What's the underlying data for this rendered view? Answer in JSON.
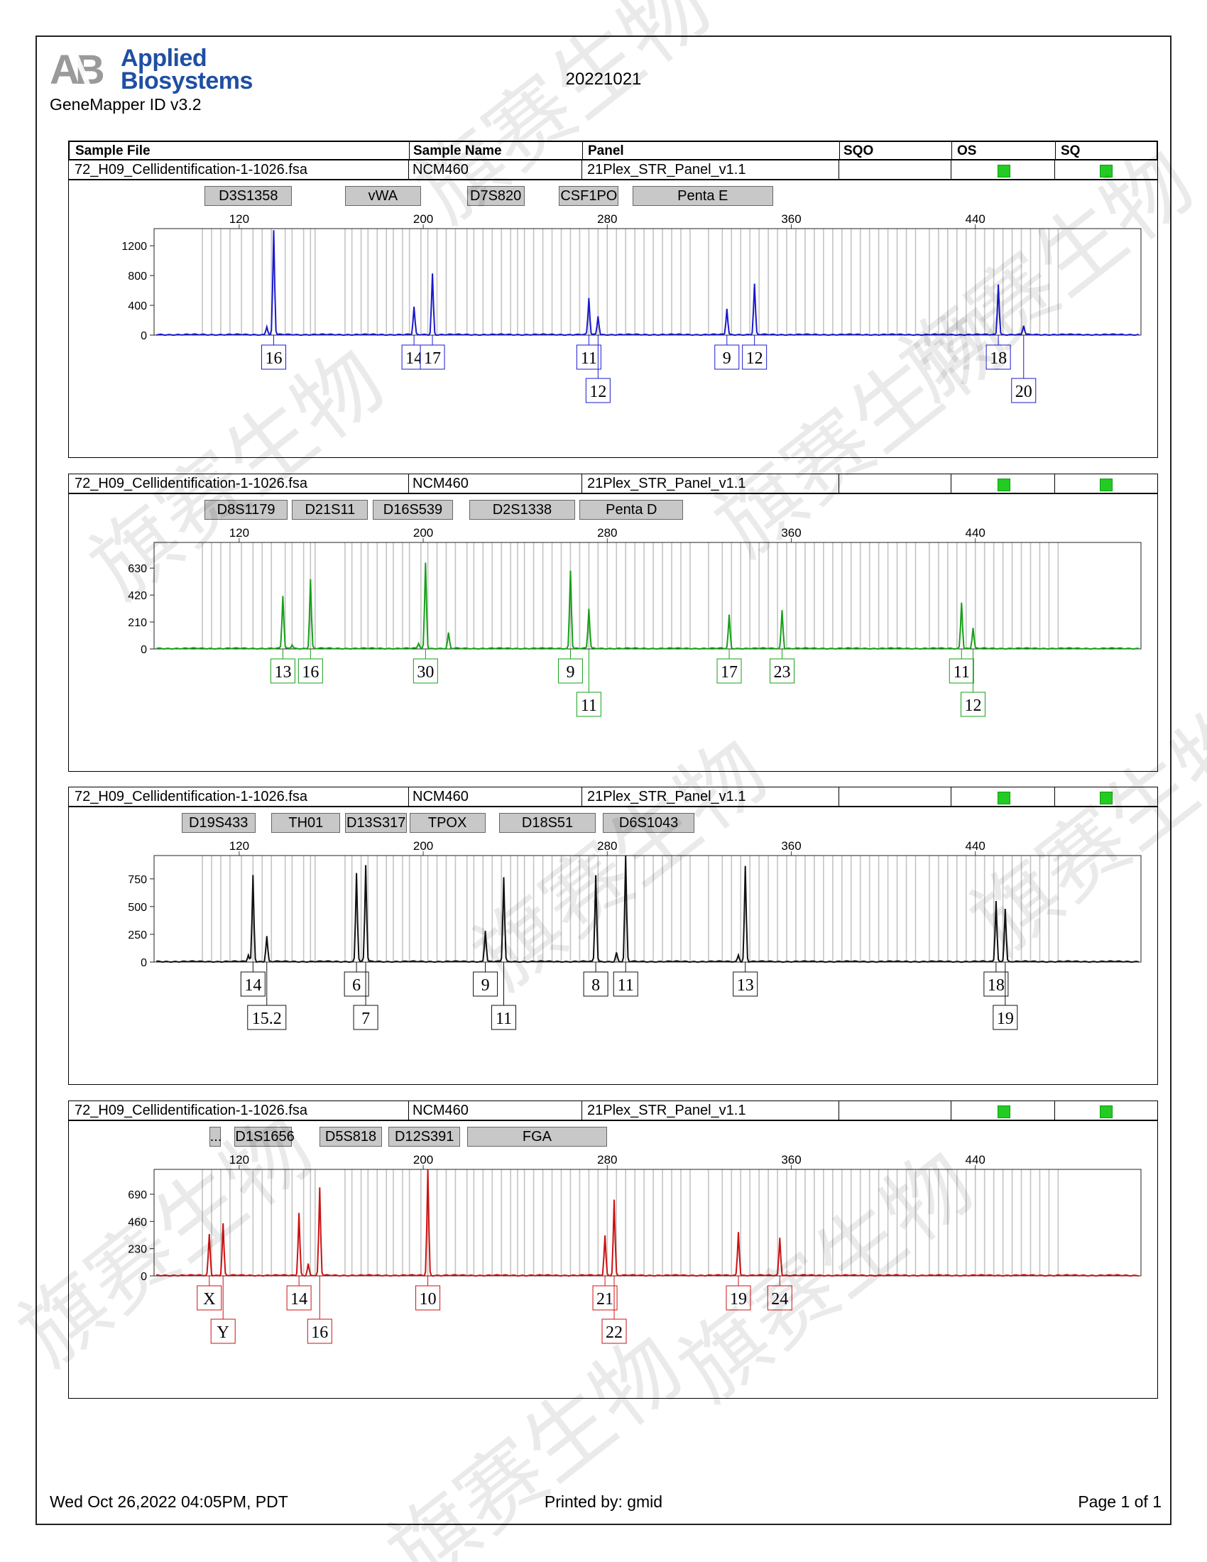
{
  "report": {
    "logo_text": "Applied Biosystems",
    "logo_line1": "Applied",
    "logo_line2": "Biosystems",
    "software": "GeneMapper ID v3.2",
    "date_code": "20221021",
    "footer_datetime": "Wed Oct 26,2022 04:05PM, PDT",
    "footer_printed_by": "Printed by: gmid",
    "footer_page": "Page 1 of 1",
    "watermark": "旗赛生物"
  },
  "columns": [
    "Sample File",
    "Sample Name",
    "Panel",
    "SQO",
    "OS",
    "SQ"
  ],
  "chart_data": [
    {
      "type": "line",
      "sample_file": "72_H09_Cellidentification-1-1026.fsa",
      "sample_name": "NCM460",
      "panel": "21Plex_STR_Panel_v1.1",
      "color": "#1a1acc",
      "markers": [
        "D3S1358",
        "vWA",
        "D7S820",
        "CSF1PO",
        "Penta E"
      ],
      "x_ticks": [
        120,
        200,
        280,
        360,
        440
      ],
      "xlim": [
        83,
        512
      ],
      "y_ticks": [
        0,
        400,
        800,
        1200
      ],
      "ylim": [
        0,
        1430
      ],
      "peaks": [
        {
          "x": 132,
          "y": 110
        },
        {
          "x": 135,
          "y": 1400,
          "label": "16",
          "row": 0
        },
        {
          "x": 196,
          "y": 370,
          "label": "14",
          "row": 0
        },
        {
          "x": 204,
          "y": 820,
          "label": "17",
          "row": 0
        },
        {
          "x": 272,
          "y": 490,
          "label": "11",
          "row": 0
        },
        {
          "x": 276,
          "y": 250,
          "label": "12",
          "row": 1
        },
        {
          "x": 332,
          "y": 350,
          "label": "9",
          "row": 0
        },
        {
          "x": 344,
          "y": 680,
          "label": "12",
          "row": 0
        },
        {
          "x": 450,
          "y": 680,
          "label": "18",
          "row": 0
        },
        {
          "x": 461,
          "y": 120,
          "label": "20",
          "row": 1
        }
      ]
    },
    {
      "type": "line",
      "sample_file": "72_H09_Cellidentification-1-1026.fsa",
      "sample_name": "NCM460",
      "panel": "21Plex_STR_Panel_v1.1",
      "color": "#16a016",
      "markers": [
        "D8S1179",
        "D21S11",
        "D16S539",
        "D2S1338",
        "Penta D"
      ],
      "x_ticks": [
        120,
        200,
        280,
        360,
        440
      ],
      "xlim": [
        83,
        512
      ],
      "y_ticks": [
        0,
        210,
        420,
        630
      ],
      "ylim": [
        0,
        830
      ],
      "peaks": [
        {
          "x": 139,
          "y": 410,
          "label": "13",
          "row": 0
        },
        {
          "x": 143,
          "y": 30
        },
        {
          "x": 151,
          "y": 540,
          "label": "16",
          "row": 0
        },
        {
          "x": 198,
          "y": 40
        },
        {
          "x": 201,
          "y": 670,
          "label": "30",
          "row": 0
        },
        {
          "x": 211,
          "y": 120
        },
        {
          "x": 264,
          "y": 610,
          "label": "9",
          "row": 0
        },
        {
          "x": 272,
          "y": 310,
          "label": "11",
          "row": 1
        },
        {
          "x": 333,
          "y": 260,
          "label": "17",
          "row": 0
        },
        {
          "x": 356,
          "y": 300,
          "label": "23",
          "row": 0
        },
        {
          "x": 434,
          "y": 360,
          "label": "11",
          "row": 0
        },
        {
          "x": 439,
          "y": 160,
          "label": "12",
          "row": 1
        }
      ]
    },
    {
      "type": "line",
      "sample_file": "72_H09_Cellidentification-1-1026.fsa",
      "sample_name": "NCM460",
      "panel": "21Plex_STR_Panel_v1.1",
      "color": "#111111",
      "markers": [
        "D19S433",
        "TH01",
        "D13S317",
        "TPOX",
        "D18S51",
        "D6S1043"
      ],
      "x_ticks": [
        120,
        200,
        280,
        360,
        440
      ],
      "xlim": [
        83,
        512
      ],
      "y_ticks": [
        0,
        250,
        500,
        750
      ],
      "ylim": [
        0,
        960
      ],
      "peaks": [
        {
          "x": 124,
          "y": 60
        },
        {
          "x": 126,
          "y": 780,
          "label": "14",
          "row": 0
        },
        {
          "x": 132,
          "y": 230,
          "label": "15.2",
          "row": 1
        },
        {
          "x": 171,
          "y": 800,
          "label": "6",
          "row": 0
        },
        {
          "x": 175,
          "y": 870,
          "label": "7",
          "row": 1
        },
        {
          "x": 227,
          "y": 280,
          "label": "9",
          "row": 0
        },
        {
          "x": 235,
          "y": 760,
          "label": "11",
          "row": 1
        },
        {
          "x": 275,
          "y": 780,
          "label": "8",
          "row": 0
        },
        {
          "x": 284,
          "y": 80
        },
        {
          "x": 288,
          "y": 960,
          "label": "11",
          "row": 0
        },
        {
          "x": 337,
          "y": 60
        },
        {
          "x": 340,
          "y": 860,
          "label": "13",
          "row": 0
        },
        {
          "x": 449,
          "y": 550,
          "label": "18",
          "row": 0
        },
        {
          "x": 453,
          "y": 480,
          "label": "19",
          "row": 1
        }
      ]
    },
    {
      "type": "line",
      "sample_file": "72_H09_Cellidentification-1-1026.fsa",
      "sample_name": "NCM460",
      "panel": "21Plex_STR_Panel_v1.1",
      "color": "#cc1111",
      "markers": [
        "...",
        "D1S1656",
        "D5S818",
        "D12S391",
        "FGA"
      ],
      "x_ticks": [
        120,
        200,
        280,
        360,
        440
      ],
      "xlim": [
        83,
        512
      ],
      "y_ticks": [
        0,
        230,
        460,
        690
      ],
      "ylim": [
        0,
        900
      ],
      "peaks": [
        {
          "x": 107,
          "y": 350,
          "label": "X",
          "row": 0
        },
        {
          "x": 113,
          "y": 440,
          "label": "Y",
          "row": 1
        },
        {
          "x": 146,
          "y": 530,
          "label": "14",
          "row": 0
        },
        {
          "x": 150,
          "y": 100
        },
        {
          "x": 155,
          "y": 740,
          "label": "16",
          "row": 1
        },
        {
          "x": 202,
          "y": 900,
          "label": "10",
          "row": 0
        },
        {
          "x": 279,
          "y": 340,
          "label": "21",
          "row": 0
        },
        {
          "x": 283,
          "y": 640,
          "label": "22",
          "row": 1
        },
        {
          "x": 337,
          "y": 370,
          "label": "19",
          "row": 0
        },
        {
          "x": 355,
          "y": 320,
          "label": "24",
          "row": 0
        }
      ]
    }
  ]
}
